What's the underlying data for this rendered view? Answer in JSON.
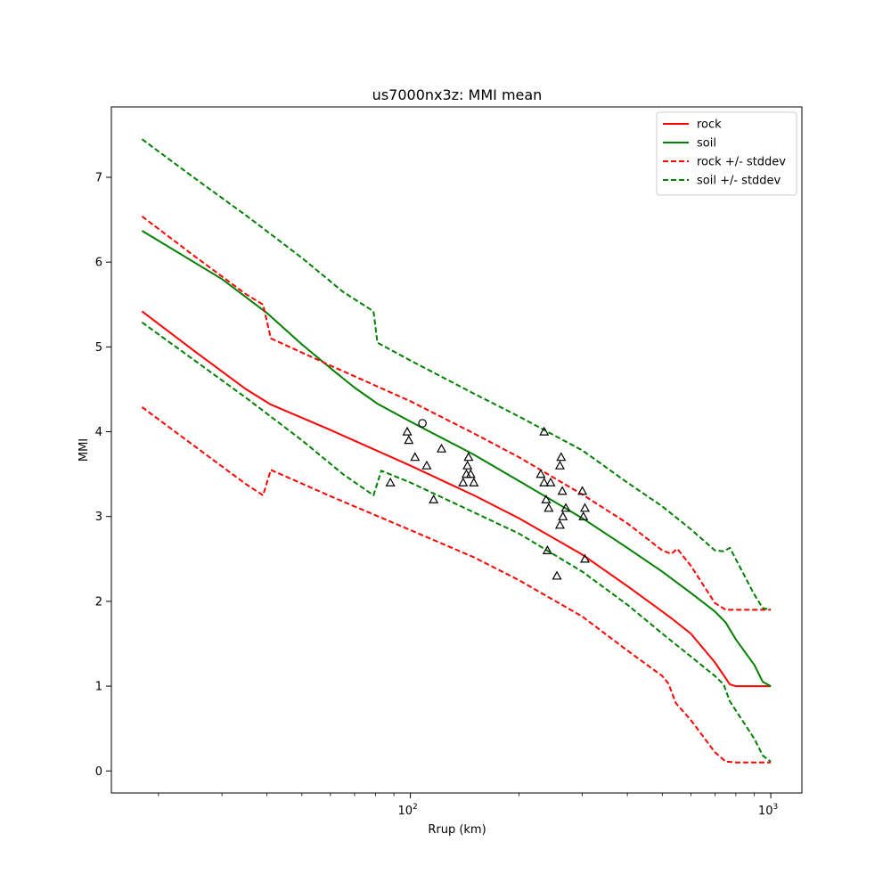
{
  "chart_data": {
    "type": "line",
    "title": "us7000nx3z: MMI mean",
    "xlabel": "Rrup (km)",
    "ylabel": "MMI",
    "xscale": "log",
    "xlim": [
      14.8,
      1220
    ],
    "ylim": [
      -0.26,
      7.83
    ],
    "x_ticks": [
      {
        "value": 100,
        "base": "10",
        "exp": "2"
      },
      {
        "value": 1000,
        "base": "10",
        "exp": "3"
      }
    ],
    "x_minor_ticks": [
      20,
      30,
      40,
      50,
      60,
      70,
      80,
      90,
      200,
      300,
      400,
      500,
      600,
      700,
      800,
      900
    ],
    "y_ticks": [
      0,
      1,
      2,
      3,
      4,
      5,
      6,
      7
    ],
    "grid": false,
    "legend": {
      "placement": "top-right",
      "entries": [
        {
          "label": "rock",
          "color": "#ff0000",
          "style": "solid"
        },
        {
          "label": "soil",
          "color": "#008000",
          "style": "solid"
        },
        {
          "label": "rock +/- stddev",
          "color": "#ff0000",
          "style": "dashed"
        },
        {
          "label": "soil +/- stddev",
          "color": "#008000",
          "style": "dashed"
        }
      ]
    },
    "series": [
      {
        "name": "rock",
        "color": "#ff0000",
        "style": "solid",
        "x": [
          18,
          25,
          35,
          41,
          60,
          100,
          150,
          200,
          300,
          400,
          500,
          530,
          600,
          700,
          770,
          800,
          1000
        ],
        "y": [
          5.42,
          4.96,
          4.5,
          4.32,
          4.02,
          3.6,
          3.25,
          2.98,
          2.55,
          2.18,
          1.88,
          1.8,
          1.62,
          1.28,
          1.02,
          1.0,
          1.0
        ]
      },
      {
        "name": "soil",
        "color": "#008000",
        "style": "solid",
        "x": [
          18,
          30,
          40,
          50,
          60,
          70,
          81,
          100,
          150,
          200,
          300,
          400,
          500,
          600,
          700,
          750,
          800,
          900,
          950,
          1000
        ],
        "y": [
          6.37,
          5.8,
          5.4,
          5.03,
          4.75,
          4.52,
          4.33,
          4.12,
          3.73,
          3.42,
          2.98,
          2.63,
          2.35,
          2.1,
          1.88,
          1.75,
          1.55,
          1.25,
          1.05,
          1.0
        ]
      },
      {
        "name": "rock +/- stddev",
        "color": "#ff0000",
        "style": "dashed",
        "x": [
          18,
          25,
          35,
          39,
          41,
          60,
          100,
          150,
          200,
          300,
          400,
          500,
          530,
          550,
          600,
          700,
          750,
          800,
          1000
        ],
        "y": [
          6.54,
          6.08,
          5.62,
          5.5,
          5.1,
          4.78,
          4.36,
          3.98,
          3.7,
          3.26,
          2.92,
          2.6,
          2.56,
          2.62,
          2.42,
          1.98,
          1.9,
          1.9,
          1.9
        ]
      },
      {
        "name": "rock +/- stddev lower",
        "color": "#ff0000",
        "style": "dashed",
        "x": [
          18,
          25,
          35,
          39,
          41,
          60,
          100,
          150,
          200,
          300,
          400,
          500,
          520,
          545,
          600,
          700,
          750,
          800,
          1000
        ],
        "y": [
          4.29,
          3.84,
          3.38,
          3.25,
          3.55,
          3.24,
          2.84,
          2.52,
          2.25,
          1.82,
          1.42,
          1.12,
          1.03,
          0.8,
          0.6,
          0.22,
          0.11,
          0.1,
          0.1
        ]
      },
      {
        "name": "soil +/- stddev",
        "color": "#008000",
        "style": "dashed",
        "x": [
          18,
          25,
          35,
          50,
          65,
          79,
          81,
          100,
          150,
          200,
          300,
          400,
          500,
          600,
          700,
          740,
          770,
          900,
          950,
          1000
        ],
        "y": [
          7.45,
          7.0,
          6.55,
          6.05,
          5.65,
          5.42,
          5.05,
          4.84,
          4.45,
          4.18,
          3.78,
          3.4,
          3.12,
          2.85,
          2.6,
          2.59,
          2.63,
          2.08,
          1.92,
          1.9
        ]
      },
      {
        "name": "soil +/- stddev lower",
        "color": "#008000",
        "style": "dashed",
        "x": [
          18,
          25,
          35,
          50,
          65,
          79,
          83,
          100,
          150,
          200,
          300,
          400,
          500,
          600,
          700,
          740,
          770,
          900,
          950,
          1000
        ],
        "y": [
          5.29,
          4.85,
          4.4,
          3.9,
          3.5,
          3.25,
          3.54,
          3.4,
          3.05,
          2.8,
          2.35,
          1.96,
          1.62,
          1.35,
          1.12,
          1.02,
          0.82,
          0.38,
          0.18,
          0.11
        ]
      }
    ],
    "observations": [
      {
        "marker": "circle",
        "points": [
          {
            "x": 108,
            "y": 4.1
          }
        ]
      },
      {
        "marker": "triangle",
        "points": [
          {
            "x": 98,
            "y": 4.0
          },
          {
            "x": 99,
            "y": 3.9
          },
          {
            "x": 103,
            "y": 3.7
          },
          {
            "x": 111,
            "y": 3.6
          },
          {
            "x": 122,
            "y": 3.8
          },
          {
            "x": 116,
            "y": 3.2
          },
          {
            "x": 88,
            "y": 3.4
          },
          {
            "x": 145,
            "y": 3.7
          },
          {
            "x": 144,
            "y": 3.6
          },
          {
            "x": 143,
            "y": 3.5
          },
          {
            "x": 147,
            "y": 3.5
          },
          {
            "x": 150,
            "y": 3.4
          },
          {
            "x": 140,
            "y": 3.4
          },
          {
            "x": 235,
            "y": 4.0
          },
          {
            "x": 230,
            "y": 3.5
          },
          {
            "x": 235,
            "y": 3.4
          },
          {
            "x": 245,
            "y": 3.4
          },
          {
            "x": 262,
            "y": 3.7
          },
          {
            "x": 260,
            "y": 3.6
          },
          {
            "x": 264,
            "y": 3.3
          },
          {
            "x": 238,
            "y": 3.2
          },
          {
            "x": 242,
            "y": 3.1
          },
          {
            "x": 270,
            "y": 3.1
          },
          {
            "x": 265,
            "y": 3.0
          },
          {
            "x": 260,
            "y": 2.9
          },
          {
            "x": 300,
            "y": 3.3
          },
          {
            "x": 305,
            "y": 3.1
          },
          {
            "x": 302,
            "y": 3.0
          },
          {
            "x": 240,
            "y": 2.6
          },
          {
            "x": 255,
            "y": 2.3
          },
          {
            "x": 305,
            "y": 2.5
          }
        ]
      }
    ]
  }
}
